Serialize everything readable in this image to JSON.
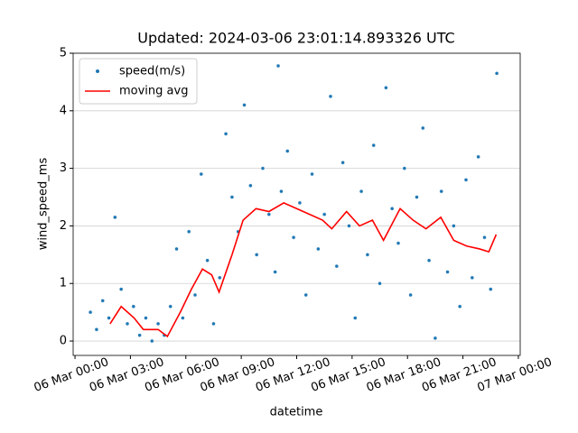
{
  "chart_data": {
    "type": "scatter",
    "title": "Updated: 2024-03-06 23:01:14.893326 UTC",
    "x_label": "datetime",
    "y_label": "wind_speed_ms",
    "xlim": [
      "05 Mar 23:54",
      "07 Mar 00:06"
    ],
    "xticks": [
      "06 Mar 00:00",
      "06 Mar 03:00",
      "06 Mar 06:00",
      "06 Mar 09:00",
      "06 Mar 12:00",
      "06 Mar 15:00",
      "06 Mar 18:00",
      "06 Mar 21:00",
      "07 Mar 00:00"
    ],
    "ylim": [
      -0.25,
      5.0
    ],
    "yticks": [
      0,
      1,
      2,
      3,
      4,
      5
    ],
    "grid": true,
    "legend": "upper left",
    "series": [
      {
        "name": "speed(m/s)",
        "type": "scatter",
        "color": "#1f77b4",
        "x": [
          "06 Mar 00:50",
          "06 Mar 01:10",
          "06 Mar 01:30",
          "06 Mar 01:50",
          "06 Mar 02:10",
          "06 Mar 02:30",
          "06 Mar 02:50",
          "06 Mar 03:10",
          "06 Mar 03:30",
          "06 Mar 03:50",
          "06 Mar 04:10",
          "06 Mar 04:30",
          "06 Mar 04:50",
          "06 Mar 05:10",
          "06 Mar 05:30",
          "06 Mar 05:50",
          "06 Mar 06:10",
          "06 Mar 06:30",
          "06 Mar 06:50",
          "06 Mar 07:10",
          "06 Mar 07:30",
          "06 Mar 07:50",
          "06 Mar 08:10",
          "06 Mar 08:30",
          "06 Mar 08:50",
          "06 Mar 09:10",
          "06 Mar 09:30",
          "06 Mar 09:50",
          "06 Mar 10:10",
          "06 Mar 10:30",
          "06 Mar 10:50",
          "06 Mar 11:00",
          "06 Mar 11:10",
          "06 Mar 11:30",
          "06 Mar 11:50",
          "06 Mar 12:10",
          "06 Mar 12:30",
          "06 Mar 12:50",
          "06 Mar 13:10",
          "06 Mar 13:30",
          "06 Mar 13:50",
          "06 Mar 14:10",
          "06 Mar 14:30",
          "06 Mar 14:50",
          "06 Mar 15:10",
          "06 Mar 15:30",
          "06 Mar 15:50",
          "06 Mar 16:10",
          "06 Mar 16:30",
          "06 Mar 16:50",
          "06 Mar 17:10",
          "06 Mar 17:30",
          "06 Mar 17:50",
          "06 Mar 18:10",
          "06 Mar 18:30",
          "06 Mar 18:50",
          "06 Mar 19:10",
          "06 Mar 19:30",
          "06 Mar 19:50",
          "06 Mar 20:10",
          "06 Mar 20:30",
          "06 Mar 20:50",
          "06 Mar 21:10",
          "06 Mar 21:30",
          "06 Mar 21:50",
          "06 Mar 22:10",
          "06 Mar 22:30",
          "06 Mar 22:50"
        ],
        "values": [
          0.5,
          0.2,
          0.7,
          0.4,
          2.15,
          0.9,
          0.3,
          0.6,
          0.1,
          0.4,
          0.0,
          0.3,
          0.1,
          0.6,
          1.6,
          0.4,
          1.9,
          0.8,
          2.9,
          1.4,
          0.3,
          1.1,
          3.6,
          2.5,
          1.9,
          4.1,
          2.7,
          1.5,
          3.0,
          2.2,
          1.2,
          4.78,
          2.6,
          3.3,
          1.8,
          2.4,
          0.8,
          2.9,
          1.6,
          2.2,
          4.25,
          1.3,
          3.1,
          2.0,
          0.4,
          2.6,
          1.5,
          3.4,
          1.0,
          4.4,
          2.3,
          1.7,
          3.0,
          0.8,
          2.5,
          3.7,
          1.4,
          0.05,
          2.6,
          1.2,
          2.0,
          0.6,
          2.8,
          1.1,
          3.2,
          1.8,
          0.9,
          4.65
        ]
      },
      {
        "name": "moving avg",
        "type": "line",
        "color": "#ff0000",
        "x": [
          "06 Mar 01:54",
          "06 Mar 02:30",
          "06 Mar 03:12",
          "06 Mar 03:42",
          "06 Mar 04:30",
          "06 Mar 05:00",
          "06 Mar 05:42",
          "06 Mar 06:18",
          "06 Mar 06:54",
          "06 Mar 07:24",
          "06 Mar 07:48",
          "06 Mar 08:30",
          "06 Mar 09:06",
          "06 Mar 09:48",
          "06 Mar 10:30",
          "06 Mar 11:18",
          "06 Mar 12:00",
          "06 Mar 12:42",
          "06 Mar 13:24",
          "06 Mar 13:54",
          "06 Mar 14:42",
          "06 Mar 15:24",
          "06 Mar 16:06",
          "06 Mar 16:42",
          "06 Mar 17:36",
          "06 Mar 18:18",
          "06 Mar 19:00",
          "06 Mar 19:48",
          "06 Mar 20:30",
          "06 Mar 21:12",
          "06 Mar 21:54",
          "06 Mar 22:24",
          "06 Mar 22:48"
        ],
        "values": [
          0.3,
          0.6,
          0.4,
          0.2,
          0.2,
          0.08,
          0.5,
          0.9,
          1.25,
          1.15,
          0.85,
          1.5,
          2.1,
          2.3,
          2.25,
          2.4,
          2.3,
          2.2,
          2.1,
          1.95,
          2.25,
          2.0,
          2.1,
          1.75,
          2.3,
          2.1,
          1.95,
          2.15,
          1.75,
          1.65,
          1.6,
          1.55,
          1.85
        ]
      }
    ]
  }
}
